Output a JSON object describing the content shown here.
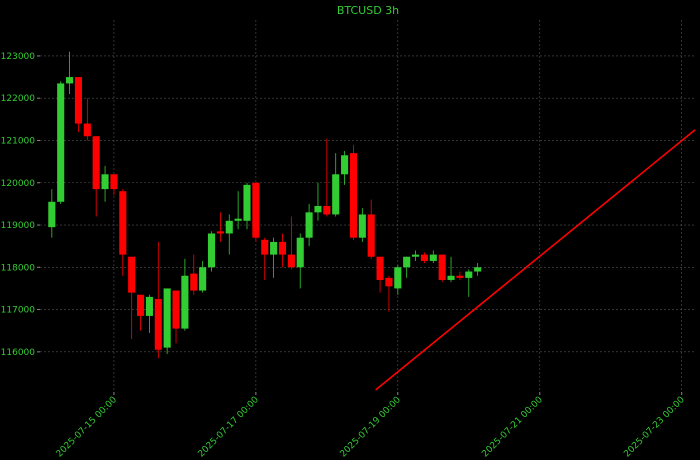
{
  "chart_data": {
    "type": "candlestick",
    "title": "BTCUSD 3h",
    "x": [
      "2025-07-14 03:00",
      "2025-07-14 06:00",
      "2025-07-14 09:00",
      "2025-07-14 12:00",
      "2025-07-14 15:00",
      "2025-07-14 18:00",
      "2025-07-14 21:00",
      "2025-07-15 00:00",
      "2025-07-15 03:00",
      "2025-07-15 06:00",
      "2025-07-15 09:00",
      "2025-07-15 12:00",
      "2025-07-15 15:00",
      "2025-07-15 18:00",
      "2025-07-15 21:00",
      "2025-07-16 00:00",
      "2025-07-16 03:00",
      "2025-07-16 06:00",
      "2025-07-16 09:00",
      "2025-07-16 12:00",
      "2025-07-16 15:00",
      "2025-07-16 18:00",
      "2025-07-16 21:00",
      "2025-07-17 00:00",
      "2025-07-17 03:00",
      "2025-07-17 06:00",
      "2025-07-17 09:00",
      "2025-07-17 12:00",
      "2025-07-17 15:00",
      "2025-07-17 18:00",
      "2025-07-17 21:00",
      "2025-07-18 00:00",
      "2025-07-18 03:00",
      "2025-07-18 06:00",
      "2025-07-18 09:00",
      "2025-07-18 12:00",
      "2025-07-18 15:00",
      "2025-07-18 18:00",
      "2025-07-18 21:00",
      "2025-07-19 00:00",
      "2025-07-19 03:00",
      "2025-07-19 06:00",
      "2025-07-19 09:00",
      "2025-07-19 12:00",
      "2025-07-19 15:00",
      "2025-07-19 18:00",
      "2025-07-19 21:00",
      "2025-07-20 00:00",
      "2025-07-20 03:00"
    ],
    "open": [
      118950,
      119550,
      122350,
      122500,
      121400,
      121100,
      119850,
      120200,
      119800,
      118250,
      117350,
      116850,
      117250,
      116100,
      117450,
      116550,
      117850,
      117450,
      118000,
      118850,
      118800,
      119100,
      119100,
      120000,
      118650,
      118300,
      118600,
      118300,
      118000,
      118700,
      119300,
      119450,
      119250,
      120200,
      120700,
      118700,
      119250,
      118250,
      117750,
      117500,
      118000,
      118250,
      118300,
      118150,
      118300,
      117700,
      117800,
      117750,
      117900
    ],
    "high": [
      119850,
      122400,
      123100,
      122500,
      122000,
      121100,
      120400,
      120200,
      119850,
      118250,
      117350,
      117350,
      118600,
      117500,
      117450,
      118200,
      118300,
      118150,
      118850,
      119300,
      119250,
      119800,
      120000,
      120000,
      118700,
      118700,
      118800,
      119200,
      118800,
      119500,
      120000,
      121050,
      120700,
      120750,
      120900,
      119400,
      119600,
      118250,
      117800,
      118050,
      118250,
      118400,
      118350,
      118400,
      118300,
      118250,
      117900,
      117950,
      118100
    ],
    "low": [
      118700,
      119500,
      122100,
      121200,
      121000,
      119200,
      119550,
      119700,
      117800,
      116300,
      116500,
      116450,
      115850,
      115950,
      116200,
      116500,
      117350,
      117400,
      117900,
      118600,
      118300,
      118900,
      118900,
      118600,
      117700,
      117750,
      118000,
      117950,
      117500,
      118500,
      119100,
      119200,
      119200,
      119950,
      118650,
      118600,
      118200,
      117400,
      116950,
      117350,
      117750,
      118150,
      118100,
      118100,
      117650,
      117650,
      117700,
      117300,
      117800
    ],
    "close": [
      119550,
      122350,
      122500,
      121400,
      121100,
      119850,
      120200,
      119850,
      118300,
      117400,
      116850,
      117300,
      116050,
      117500,
      116550,
      117800,
      117450,
      118000,
      118800,
      118800,
      119100,
      119150,
      119950,
      118700,
      118300,
      118600,
      118300,
      118000,
      118700,
      119300,
      119450,
      119250,
      120200,
      120650,
      118700,
      119250,
      118250,
      117700,
      117550,
      118000,
      118250,
      118300,
      118150,
      118300,
      117700,
      117800,
      117750,
      117900,
      118000
    ],
    "up_color": "#32cd32",
    "down_color": "#ff0000",
    "line": {
      "color": "#ff0000",
      "x": [
        "2025-07-18 16:30",
        "2025-07-23 04:30"
      ],
      "y": [
        115100,
        121250
      ]
    },
    "xlim": [
      "2025-07-13 23:00",
      "2025-07-23 04:30"
    ],
    "xticks": [
      "2025-07-15 00:00",
      "2025-07-17 00:00",
      "2025-07-19 00:00",
      "2025-07-21 00:00",
      "2025-07-23 00:00"
    ],
    "ylim": [
      115050,
      123850
    ],
    "yticks": [
      116000,
      117000,
      118000,
      119000,
      120000,
      121000,
      122000,
      123000
    ],
    "grid": true
  }
}
